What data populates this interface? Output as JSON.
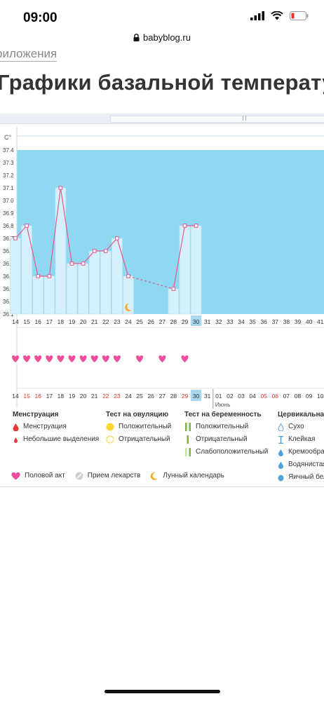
{
  "status": {
    "time": "09:00"
  },
  "browser": {
    "url": "babyblog.ru"
  },
  "page": {
    "breadcrumb": "риложения",
    "title": "Графики базальной температу"
  },
  "chart_data": {
    "type": "line",
    "ylabel": "C°",
    "ylim": [
      36.1,
      37.4
    ],
    "yticks": [
      "37.4",
      "37.3",
      "37.2",
      "37.1",
      "37.0",
      "36.9",
      "36.8",
      "36.7",
      "36.6",
      "36.5",
      "36.4",
      "36.3",
      "36.2",
      "36.1"
    ],
    "days": [
      "14",
      "15",
      "16",
      "17",
      "18",
      "19",
      "20",
      "21",
      "22",
      "23",
      "24",
      "25",
      "26",
      "27",
      "28",
      "29",
      "30",
      "31",
      "32",
      "33",
      "34",
      "35",
      "36",
      "37",
      "38",
      "39",
      "40",
      "41"
    ],
    "temperatures": [
      36.7,
      36.8,
      36.4,
      36.4,
      37.1,
      36.5,
      36.5,
      36.6,
      36.6,
      36.7,
      36.4,
      null,
      null,
      null,
      36.3,
      36.8,
      36.8,
      null,
      null,
      null,
      null,
      null,
      null,
      null,
      null,
      null,
      null,
      null
    ],
    "dashed_segment": [
      10,
      14
    ],
    "selected_day": "30",
    "intercourse_days": [
      "14",
      "15",
      "16",
      "17",
      "18",
      "19",
      "20",
      "21",
      "22",
      "23",
      "25",
      "27",
      "29"
    ],
    "lunar_day": "24",
    "dates": [
      "14",
      "15",
      "16",
      "17",
      "18",
      "19",
      "20",
      "21",
      "22",
      "23",
      "24",
      "25",
      "26",
      "27",
      "28",
      "29",
      "30",
      "31",
      "01",
      "02",
      "03",
      "04",
      "05",
      "06",
      "07",
      "08",
      "09",
      "10"
    ],
    "red_dates": [
      "15",
      "16",
      "22",
      "23",
      "29",
      "05",
      "06"
    ],
    "month_label": "Июнь",
    "colors": {
      "fill": "#8fd8f2",
      "bar": "#d6f0fb",
      "bar_border": "#b3dff0",
      "line": "#e05a8c",
      "heart": "#ef4f9a",
      "highlight": "#a9d8ee"
    }
  },
  "legend": {
    "menstruation": {
      "title": "Менструация",
      "items": [
        "Менструация",
        "Небольшие выделения"
      ]
    },
    "ovulation": {
      "title": "Тест на овуляцию",
      "items": [
        "Положительный",
        "Отрицательный"
      ]
    },
    "pregnancy": {
      "title": "Тест на беременность",
      "items": [
        "Положительный",
        "Отрицательный",
        "Слабоположительный"
      ]
    },
    "cervical": {
      "title": "Цервикальная",
      "items": [
        "Сухо",
        "Клейкая",
        "Кремообраз",
        "Водянистая",
        "Яичный бел"
      ]
    },
    "bottom": [
      "Половой акт",
      "Прием лекарств",
      "Лунный календарь"
    ]
  }
}
